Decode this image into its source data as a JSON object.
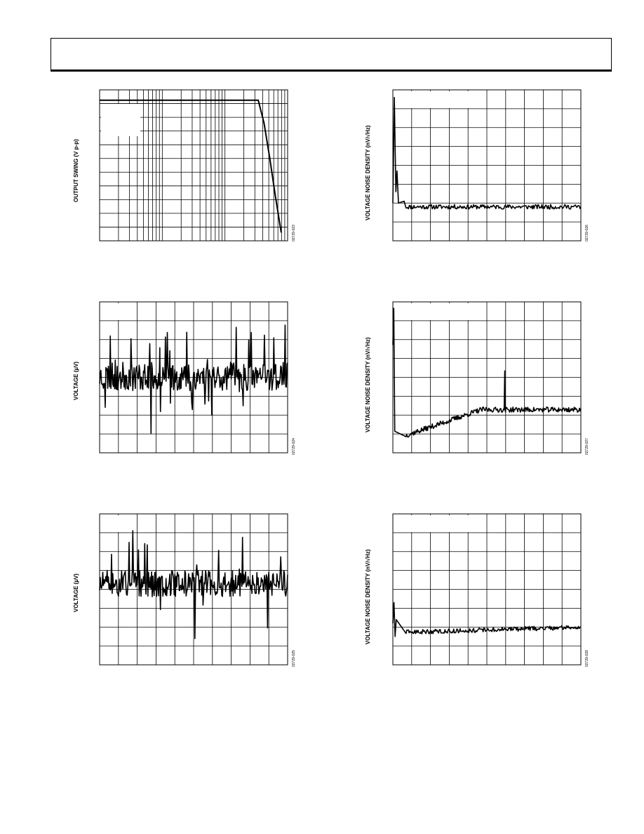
{
  "page": {
    "header_text": ""
  },
  "charts": [
    {
      "id": "c1",
      "ylabel": "OUTPUT SWING (V p-p)",
      "fig_id": "02729-023",
      "chart_data": {
        "type": "line",
        "xscale": "log",
        "xlim": [
          1,
          1000
        ],
        "ylim": [
          0,
          11
        ],
        "title": "",
        "xlabel": "",
        "series": [
          {
            "x": [
              1,
              10,
              100,
              340,
              420,
              520,
              640,
              790
            ],
            "y": [
              10.25,
              10.25,
              10.25,
              10.25,
              8.6,
              6.0,
              3.2,
              0.6
            ]
          }
        ]
      }
    },
    {
      "id": "c2",
      "ylabel": "VOLTAGE NOISE DENSITY (nV/√Hz)",
      "fig_id": "02729-026",
      "chart_data": {
        "type": "line",
        "xlim": [
          0,
          10
        ],
        "ylim": [
          0,
          8
        ],
        "title": "",
        "xlabel": "",
        "noise": {
          "baseline": 1.8,
          "amplitude": 0.12,
          "points": 220,
          "seed": 11,
          "spikes": [
            [
              0.0,
              2.0
            ],
            [
              0.08,
              7.6
            ],
            [
              0.16,
              2.6
            ],
            [
              0.22,
              3.7
            ],
            [
              0.3,
              2.0
            ],
            [
              0.6,
              2.1
            ]
          ]
        }
      }
    },
    {
      "id": "c3",
      "ylabel": "VOLTAGE (µV)",
      "fig_id": "02729-024",
      "chart_data": {
        "type": "line",
        "xlim": [
          0,
          10
        ],
        "ylim": [
          -4,
          4
        ],
        "title": "",
        "xlabel": "",
        "noise": {
          "baseline": 0.05,
          "amplitude": 0.75,
          "points": 300,
          "seed": 23,
          "excursions": 2.6
        }
      }
    },
    {
      "id": "c4",
      "ylabel": "VOLTAGE NOISE DENSITY (nV/√Hz)",
      "fig_id": "02729-027",
      "chart_data": {
        "type": "line",
        "xlim": [
          0,
          10
        ],
        "ylim": [
          0,
          7
        ],
        "title": "",
        "xlabel": "",
        "noise": {
          "baseline": 0.6,
          "ramp_to": 2.0,
          "ramp_end": 4.7,
          "amplitude": 0.12,
          "points": 260,
          "seed": 37,
          "spikes": [
            [
              0.0,
              5.0
            ],
            [
              0.05,
              6.7
            ],
            [
              0.1,
              1.0
            ],
            [
              5.9,
              2.0
            ],
            [
              5.95,
              3.8
            ],
            [
              6.0,
              2.0
            ]
          ]
        }
      }
    },
    {
      "id": "c5",
      "ylabel": "VOLTAGE (µV)",
      "fig_id": "02729-025",
      "chart_data": {
        "type": "line",
        "xlim": [
          0,
          10
        ],
        "ylim": [
          -4,
          4
        ],
        "title": "",
        "xlabel": "",
        "noise": {
          "baseline": 0.3,
          "amplitude": 0.7,
          "points": 300,
          "seed": 51,
          "excursions": 2.5
        }
      }
    },
    {
      "id": "c6",
      "ylabel": "VOLTAGE NOISE DENSITY (nV/√Hz)",
      "fig_id": "02729-028",
      "chart_data": {
        "type": "line",
        "xlim": [
          0,
          10
        ],
        "ylim": [
          0,
          8
        ],
        "title": "",
        "xlabel": "",
        "noise": {
          "baseline": 1.7,
          "ramp_to": 2.0,
          "ramp_end": 10,
          "amplitude": 0.12,
          "points": 220,
          "seed": 63,
          "spikes": [
            [
              0.0,
              2.2
            ],
            [
              0.06,
              3.3
            ],
            [
              0.12,
              1.5
            ],
            [
              0.18,
              2.4
            ]
          ]
        }
      }
    }
  ]
}
